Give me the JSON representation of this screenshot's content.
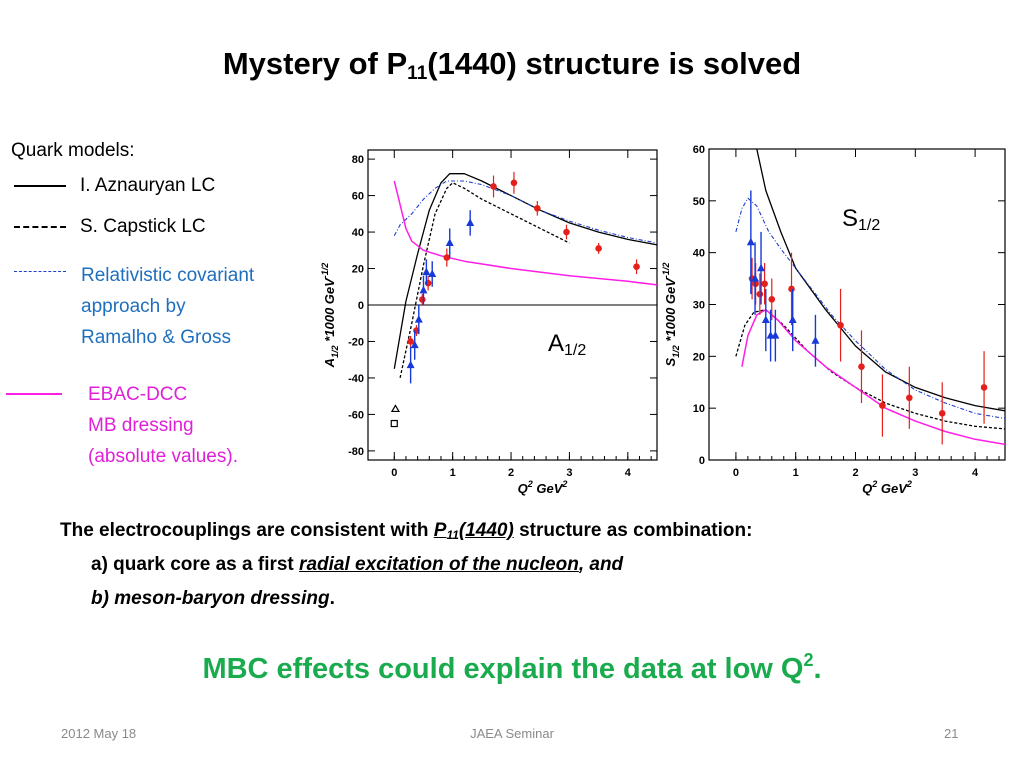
{
  "slide": {
    "title_pre": "Mystery of P",
    "title_sub": "11",
    "title_post": "(1440)  structure is solved",
    "legend": {
      "heading": "Quark models:",
      "aznauryan": "I.  Aznauryan LC",
      "capstick": "S. Capstick LC",
      "ramalho": [
        "Relativistic  covariant",
        "approach by",
        "Ramalho  & Gross"
      ],
      "ebac": [
        "EBAC-DCC",
        "MB dressing",
        "(absolute values)."
      ]
    },
    "conclusion": {
      "line1_pre": "The electrocouplings  are consistent with ",
      "line1_p": "P",
      "line1_sub": "11",
      "line1_mass": "(1440)",
      "line1_post": " structure as combination:",
      "line2_pre": "a) quark core as  a first ",
      "line2_em": "radial excitation of the nucleon",
      "line2_post": ", and",
      "line3_em": "b) meson-baryon dressing",
      "line3_post": "."
    },
    "mbc_text": "MBC effects could explain the data at low Q",
    "mbc_sup": "2",
    "mbc_end": ".",
    "footer": {
      "date": "2012 May 18",
      "event": "JAEA Seminar",
      "page": "21"
    }
  },
  "colors": {
    "aznauryan": "#000000",
    "capstick": "#000000",
    "ramalho": "#1f3fcf",
    "ebac": "#ff1ee6",
    "data_red": "#e3201b",
    "data_blue": "#1739d8",
    "ramalho_text": "#1f6fbf",
    "ebac_text": "#e020d8",
    "mbc": "#1aab4e"
  },
  "chart_data": [
    {
      "type": "scatter",
      "panel_label": "A",
      "panel_sub": "1/2",
      "ylabel_main": "A",
      "ylabel_sub": "1/2",
      "ylabel_rest": " *1000 GeV",
      "ylabel_sup": "-1/2",
      "xlabel": "Q",
      "xlabel_sup": "2",
      "xlabel_unit": " GeV",
      "xlim": [
        -0.45,
        4.5
      ],
      "ylim": [
        -85,
        85
      ],
      "xticks": [
        "0",
        "1",
        "2",
        "3",
        "4"
      ],
      "xtick_vals": [
        0,
        1,
        2,
        3,
        4
      ],
      "yticks": [
        "80",
        "60",
        "40",
        "20",
        "0",
        "-20",
        "-40",
        "-60",
        "-80"
      ],
      "ytick_vals": [
        80,
        60,
        40,
        20,
        0,
        -20,
        -40,
        -60,
        -80
      ],
      "zero_line": true,
      "curves": [
        {
          "model": "aznauryan",
          "points": [
            [
              0,
              -35
            ],
            [
              0.2,
              2
            ],
            [
              0.4,
              28
            ],
            [
              0.6,
              52
            ],
            [
              0.8,
              67
            ],
            [
              0.95,
              72
            ],
            [
              1.2,
              72
            ],
            [
              1.5,
              68
            ],
            [
              2,
              60
            ],
            [
              2.5,
              52
            ],
            [
              3,
              45
            ],
            [
              3.5,
              40
            ],
            [
              4,
              36
            ],
            [
              4.5,
              33
            ]
          ]
        },
        {
          "model": "capstick",
          "points": [
            [
              0.1,
              -40
            ],
            [
              0.3,
              -10
            ],
            [
              0.5,
              22
            ],
            [
              0.7,
              50
            ],
            [
              0.9,
              64
            ],
            [
              1.0,
              67
            ],
            [
              1.2,
              64
            ],
            [
              1.5,
              58
            ],
            [
              2,
              50
            ],
            [
              2.5,
              42
            ],
            [
              3,
              34
            ]
          ]
        },
        {
          "model": "ramalho",
          "points": [
            [
              0,
              38
            ],
            [
              0.1,
              44
            ],
            [
              0.3,
              50
            ],
            [
              0.5,
              58
            ],
            [
              0.7,
              64
            ],
            [
              0.9,
              68
            ],
            [
              1.2,
              68
            ],
            [
              1.5,
              66
            ],
            [
              2,
              60
            ],
            [
              2.5,
              52
            ],
            [
              3,
              46
            ],
            [
              3.5,
              41
            ],
            [
              4,
              37
            ],
            [
              4.5,
              34
            ]
          ]
        },
        {
          "model": "ebac",
          "points": [
            [
              0,
              68
            ],
            [
              0.1,
              55
            ],
            [
              0.2,
              42
            ],
            [
              0.3,
              35
            ],
            [
              0.5,
              30
            ],
            [
              0.8,
              27
            ],
            [
              1.2,
              24
            ],
            [
              2,
              20
            ],
            [
              3,
              16
            ],
            [
              4,
              13
            ],
            [
              4.5,
              11
            ]
          ]
        }
      ],
      "red_points": [
        {
          "x": 0.28,
          "y": -20,
          "err": 3
        },
        {
          "x": 0.38,
          "y": -14,
          "err": 3
        },
        {
          "x": 0.48,
          "y": 3,
          "err": 3
        },
        {
          "x": 0.58,
          "y": 12,
          "err": 4
        },
        {
          "x": 0.9,
          "y": 26,
          "err": 5
        },
        {
          "x": 1.7,
          "y": 65,
          "err": 6
        },
        {
          "x": 2.05,
          "y": 67,
          "err": 6
        },
        {
          "x": 2.45,
          "y": 53,
          "err": 4
        },
        {
          "x": 2.95,
          "y": 40,
          "err": 4
        },
        {
          "x": 3.5,
          "y": 31,
          "err": 3
        },
        {
          "x": 4.15,
          "y": 21,
          "err": 4
        }
      ],
      "blue_points": [
        {
          "x": 0.28,
          "y": -33,
          "err": 10
        },
        {
          "x": 0.35,
          "y": -22,
          "err": 8
        },
        {
          "x": 0.42,
          "y": -8,
          "err": 8
        },
        {
          "x": 0.5,
          "y": 8,
          "err": 8
        },
        {
          "x": 0.55,
          "y": 18,
          "err": 7
        },
        {
          "x": 0.65,
          "y": 17,
          "err": 7
        },
        {
          "x": 0.95,
          "y": 34,
          "err": 8
        },
        {
          "x": 1.3,
          "y": 45,
          "err": 7
        }
      ],
      "open_points": [
        {
          "x": 0.02,
          "y": -57,
          "shape": "triangle"
        },
        {
          "x": 0.0,
          "y": -65,
          "shape": "square"
        }
      ]
    },
    {
      "type": "scatter",
      "panel_label": "S",
      "panel_sub": "1/2",
      "ylabel_main": "S",
      "ylabel_sub": "1/2",
      "ylabel_rest": " *1000 GeV",
      "ylabel_sup": "-1/2",
      "xlabel": "Q",
      "xlabel_sup": "2",
      "xlabel_unit": " GeV",
      "xlim": [
        -0.45,
        4.5
      ],
      "ylim": [
        0,
        60
      ],
      "xticks": [
        "0",
        "1",
        "2",
        "3",
        "4"
      ],
      "xtick_vals": [
        0,
        1,
        2,
        3,
        4
      ],
      "yticks": [
        "60",
        "50",
        "40",
        "30",
        "20",
        "10",
        "0"
      ],
      "ytick_vals": [
        60,
        50,
        40,
        30,
        20,
        10,
        0
      ],
      "zero_line": false,
      "curves": [
        {
          "model": "aznauryan",
          "points": [
            [
              0.35,
              60
            ],
            [
              0.5,
              52
            ],
            [
              0.75,
              44
            ],
            [
              1,
              37
            ],
            [
              1.5,
              29
            ],
            [
              2,
              22
            ],
            [
              2.5,
              17
            ],
            [
              3,
              14
            ],
            [
              3.5,
              12
            ],
            [
              4,
              10.5
            ],
            [
              4.5,
              9.5
            ]
          ]
        },
        {
          "model": "capstick",
          "points": [
            [
              0,
              20
            ],
            [
              0.15,
              26
            ],
            [
              0.3,
              28.5
            ],
            [
              0.5,
              29
            ],
            [
              0.8,
              26
            ],
            [
              1.2,
              21
            ],
            [
              1.6,
              17
            ],
            [
              2,
              14
            ],
            [
              2.5,
              11
            ],
            [
              3,
              9
            ],
            [
              3.5,
              7.5
            ],
            [
              4,
              6.5
            ],
            [
              4.5,
              6
            ]
          ]
        },
        {
          "model": "ramalho",
          "points": [
            [
              0,
              44
            ],
            [
              0.1,
              48.5
            ],
            [
              0.2,
              50.5
            ],
            [
              0.35,
              49
            ],
            [
              0.55,
              44
            ],
            [
              0.8,
              40
            ],
            [
              1.2,
              34
            ],
            [
              1.6,
              28
            ],
            [
              2,
              23
            ],
            [
              2.5,
              17.5
            ],
            [
              3,
              13.5
            ],
            [
              3.5,
              11
            ],
            [
              4,
              9
            ],
            [
              4.5,
              8
            ]
          ]
        },
        {
          "model": "ebac",
          "points": [
            [
              0.1,
              18
            ],
            [
              0.2,
              24
            ],
            [
              0.35,
              28
            ],
            [
              0.5,
              29
            ],
            [
              0.7,
              27
            ],
            [
              1,
              23
            ],
            [
              1.5,
              18
            ],
            [
              2,
              14
            ],
            [
              2.5,
              10
            ],
            [
              3,
              7.5
            ],
            [
              3.5,
              5.5
            ],
            [
              4,
              4
            ],
            [
              4.5,
              3
            ]
          ]
        }
      ],
      "red_points": [
        {
          "x": 0.27,
          "y": 35,
          "err": 4
        },
        {
          "x": 0.33,
          "y": 34,
          "err": 4
        },
        {
          "x": 0.4,
          "y": 32,
          "err": 4
        },
        {
          "x": 0.48,
          "y": 34,
          "err": 4
        },
        {
          "x": 0.6,
          "y": 31,
          "err": 4
        },
        {
          "x": 0.93,
          "y": 33,
          "err": 7
        },
        {
          "x": 1.75,
          "y": 26,
          "err": 7
        },
        {
          "x": 2.1,
          "y": 18,
          "err": 7
        },
        {
          "x": 2.45,
          "y": 10.5,
          "err": 6
        },
        {
          "x": 2.9,
          "y": 12,
          "err": 6
        },
        {
          "x": 3.45,
          "y": 9,
          "err": 6
        },
        {
          "x": 4.15,
          "y": 14,
          "err": 7
        }
      ],
      "blue_points": [
        {
          "x": 0.25,
          "y": 42,
          "err": 10
        },
        {
          "x": 0.32,
          "y": 35,
          "err": 7
        },
        {
          "x": 0.42,
          "y": 37,
          "err": 7
        },
        {
          "x": 0.5,
          "y": 27,
          "err": 6
        },
        {
          "x": 0.58,
          "y": 24,
          "err": 5
        },
        {
          "x": 0.66,
          "y": 24,
          "err": 5
        },
        {
          "x": 0.95,
          "y": 27,
          "err": 6
        },
        {
          "x": 1.33,
          "y": 23,
          "err": 5
        }
      ],
      "open_points": []
    }
  ]
}
